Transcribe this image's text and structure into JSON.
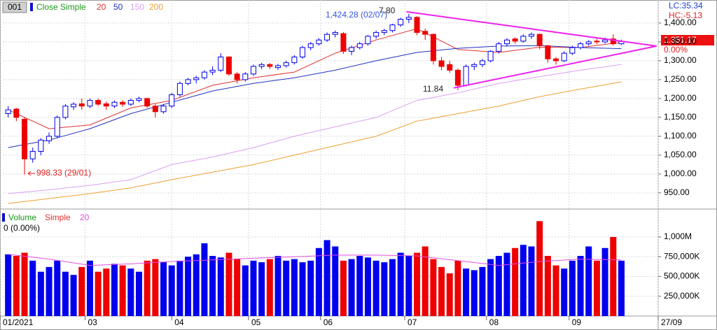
{
  "chart_data": [
    {
      "type": "candlestick",
      "symbol": "001",
      "legend_title": "Close Simple",
      "up_color": "#0000ee",
      "down_color": "#ee0000",
      "ohlc": [
        [
          1160,
          1180,
          1150,
          1170
        ],
        [
          1172,
          1175,
          1140,
          1150
        ],
        [
          1145,
          1150,
          998.33,
          1040
        ],
        [
          1040,
          1070,
          1030,
          1060
        ],
        [
          1060,
          1095,
          1050,
          1090
        ],
        [
          1088,
          1110,
          1080,
          1100
        ],
        [
          1100,
          1155,
          1095,
          1150
        ],
        [
          1150,
          1185,
          1145,
          1180
        ],
        [
          1178,
          1190,
          1170,
          1185
        ],
        [
          1186,
          1200,
          1170,
          1180
        ],
        [
          1180,
          1200,
          1175,
          1195
        ],
        [
          1195,
          1200,
          1180,
          1185
        ],
        [
          1186,
          1192,
          1170,
          1180
        ],
        [
          1180,
          1195,
          1175,
          1190
        ],
        [
          1190,
          1195,
          1178,
          1185
        ],
        [
          1185,
          1200,
          1180,
          1195
        ],
        [
          1195,
          1205,
          1190,
          1200
        ],
        [
          1200,
          1202,
          1175,
          1180
        ],
        [
          1180,
          1185,
          1150,
          1165
        ],
        [
          1165,
          1185,
          1160,
          1180
        ],
        [
          1180,
          1215,
          1175,
          1210
        ],
        [
          1210,
          1245,
          1205,
          1240
        ],
        [
          1240,
          1255,
          1235,
          1250
        ],
        [
          1250,
          1260,
          1240,
          1255
        ],
        [
          1255,
          1275,
          1250,
          1270
        ],
        [
          1270,
          1285,
          1262,
          1275
        ],
        [
          1275,
          1320,
          1270,
          1310
        ],
        [
          1310,
          1312,
          1260,
          1265
        ],
        [
          1265,
          1270,
          1240,
          1250
        ],
        [
          1250,
          1270,
          1245,
          1265
        ],
        [
          1265,
          1290,
          1260,
          1285
        ],
        [
          1285,
          1295,
          1278,
          1290
        ],
        [
          1290,
          1294,
          1278,
          1285
        ],
        [
          1282,
          1292,
          1276,
          1287
        ],
        [
          1287,
          1300,
          1282,
          1295
        ],
        [
          1295,
          1315,
          1290,
          1310
        ],
        [
          1310,
          1340,
          1305,
          1335
        ],
        [
          1335,
          1350,
          1328,
          1345
        ],
        [
          1345,
          1360,
          1340,
          1355
        ],
        [
          1355,
          1375,
          1350,
          1370
        ],
        [
          1370,
          1380,
          1362,
          1375
        ],
        [
          1372,
          1376,
          1318,
          1325
        ],
        [
          1325,
          1340,
          1315,
          1335
        ],
        [
          1335,
          1350,
          1330,
          1345
        ],
        [
          1345,
          1368,
          1340,
          1365
        ],
        [
          1365,
          1380,
          1358,
          1375
        ],
        [
          1375,
          1385,
          1368,
          1380
        ],
        [
          1380,
          1398,
          1375,
          1395
        ],
        [
          1395,
          1414,
          1390,
          1410
        ],
        [
          1410,
          1424.28,
          1400,
          1415
        ],
        [
          1415,
          1418,
          1368,
          1375
        ],
        [
          1378,
          1385,
          1355,
          1370
        ],
        [
          1370,
          1372,
          1290,
          1300
        ],
        [
          1300,
          1310,
          1275,
          1285
        ],
        [
          1290,
          1300,
          1268,
          1275
        ],
        [
          1275,
          1280,
          1221.84,
          1235
        ],
        [
          1235,
          1290,
          1232,
          1285
        ],
        [
          1285,
          1295,
          1275,
          1290
        ],
        [
          1290,
          1305,
          1283,
          1300
        ],
        [
          1300,
          1328,
          1296,
          1325
        ],
        [
          1325,
          1350,
          1320,
          1345
        ],
        [
          1345,
          1360,
          1338,
          1355
        ],
        [
          1358,
          1362,
          1345,
          1352
        ],
        [
          1352,
          1370,
          1348,
          1365
        ],
        [
          1365,
          1375,
          1358,
          1370
        ],
        [
          1370,
          1372,
          1330,
          1340
        ],
        [
          1340,
          1342,
          1295,
          1305
        ],
        [
          1305,
          1310,
          1290,
          1300
        ],
        [
          1300,
          1325,
          1296,
          1320
        ],
        [
          1320,
          1340,
          1315,
          1335
        ],
        [
          1335,
          1350,
          1330,
          1345
        ],
        [
          1345,
          1355,
          1340,
          1350
        ],
        [
          1352,
          1358,
          1344,
          1350
        ],
        [
          1350,
          1362,
          1346,
          1355
        ],
        [
          1358,
          1370,
          1340,
          1345
        ],
        [
          1345,
          1356,
          1342,
          1351.17
        ]
      ],
      "xlim": [
        -1,
        79.5
      ],
      "xticks": [
        {
          "value": -1,
          "label": "01/2021"
        },
        {
          "value": 9.4,
          "label": "03"
        },
        {
          "value": 20,
          "label": "04"
        },
        {
          "value": 29.4,
          "label": "05"
        },
        {
          "value": 38.2,
          "label": "06"
        },
        {
          "value": 48.5,
          "label": "07"
        },
        {
          "value": 58.5,
          "label": "08"
        },
        {
          "value": 68.6,
          "label": "09"
        },
        {
          "value": 79.5,
          "label": "27/09"
        }
      ],
      "ylim": [
        909,
        1461
      ],
      "yticks": [
        {
          "value": 950,
          "label": "950.00"
        },
        {
          "value": 1000,
          "label": "1,000.00"
        },
        {
          "value": 1050,
          "label": "1,050.00"
        },
        {
          "value": 1100,
          "label": "1,100.00"
        },
        {
          "value": 1150,
          "label": "1,150.00"
        },
        {
          "value": 1200,
          "label": "1,200.00"
        },
        {
          "value": 1250,
          "label": "1,250.00"
        },
        {
          "value": 1300,
          "label": "1,300.00"
        },
        {
          "value": 1350,
          "label": "1,350.00"
        },
        {
          "value": 1400,
          "label": "1,400.00"
        }
      ],
      "grid": true,
      "series": [
        {
          "name": "20",
          "color": "#e03030",
          "x": [
            0,
            5,
            10,
            15,
            20,
            25,
            30,
            35,
            40,
            45,
            50,
            55,
            60,
            65,
            70,
            75
          ],
          "values": [
            1170,
            1120,
            1130,
            1175,
            1195,
            1235,
            1255,
            1270,
            1320,
            1355,
            1385,
            1330,
            1322,
            1336,
            1335,
            1349
          ]
        },
        {
          "name": "50",
          "color": "#2030c0",
          "x": [
            0,
            5,
            10,
            15,
            20,
            25,
            30,
            35,
            40,
            45,
            50,
            55,
            60,
            65,
            70,
            75
          ],
          "values": [
            1070,
            1090,
            1120,
            1160,
            1190,
            1220,
            1240,
            1255,
            1275,
            1300,
            1322,
            1333,
            1339,
            1340,
            1335,
            1332
          ]
        },
        {
          "name": "150",
          "color": "#d9a0f0",
          "x": [
            0,
            5,
            10,
            15,
            20,
            25,
            30,
            35,
            40,
            45,
            50,
            55,
            60,
            65,
            70,
            75
          ],
          "values": [
            948,
            958,
            970,
            985,
            1025,
            1045,
            1070,
            1100,
            1125,
            1150,
            1195,
            1215,
            1240,
            1258,
            1275,
            1290
          ]
        },
        {
          "name": "200",
          "color": "#f0a030",
          "x": [
            0,
            5,
            10,
            15,
            20,
            25,
            30,
            35,
            40,
            45,
            50,
            55,
            60,
            65,
            70,
            75
          ],
          "values": [
            922,
            935,
            948,
            963,
            985,
            1005,
            1025,
            1050,
            1075,
            1100,
            1140,
            1160,
            1180,
            1205,
            1225,
            1244
          ]
        }
      ],
      "trendlines": [
        {
          "color": "#ee22ee",
          "x": [
            48.7,
            79.3
          ],
          "y": [
            1430,
            1339
          ]
        },
        {
          "color": "#ee22ee",
          "x": [
            54.5,
            79.3
          ],
          "y": [
            1228,
            1339
          ]
        }
      ],
      "annotations": [
        "1,424.28 (02/07)",
        "7.80",
        "11.84",
        "998.33 (29/01)"
      ],
      "status": {
        "lc": "LC:35.34",
        "hc": "HC:-5.13",
        "last": "1,351.17",
        "change": "0.00%"
      }
    },
    {
      "type": "bar",
      "legend_title": "Volume",
      "ma_type": "Simple",
      "status": "0 (0.00%)",
      "values": [
        780,
        760,
        800,
        700,
        560,
        620,
        700,
        560,
        520,
        620,
        700,
        560,
        600,
        660,
        640,
        600,
        560,
        700,
        720,
        680,
        640,
        700,
        750,
        780,
        920,
        760,
        740,
        800,
        720,
        640,
        700,
        680,
        720,
        760,
        700,
        720,
        680,
        700,
        860,
        960,
        880,
        700,
        720,
        760,
        740,
        700,
        680,
        720,
        800,
        760,
        800,
        880,
        720,
        620,
        540,
        700,
        600,
        580,
        620,
        720,
        760,
        800,
        860,
        900,
        880,
        1200,
        760,
        640,
        600,
        700,
        760,
        880,
        700,
        860,
        1000,
        700
      ],
      "ylim": [
        0,
        1344
      ],
      "yticks": [
        {
          "value": 250,
          "label": "250,000K"
        },
        {
          "value": 500,
          "label": "500,000K"
        },
        {
          "value": 750,
          "label": "750,000K"
        },
        {
          "value": 1000,
          "label": "1,000M"
        }
      ],
      "series": [
        {
          "name": "20",
          "color": "#e050e0",
          "x": [
            0,
            5,
            10,
            15,
            20,
            25,
            30,
            35,
            40,
            45,
            50,
            55,
            60,
            65,
            70,
            75
          ],
          "values": [
            780,
            720,
            640,
            660,
            690,
            710,
            730,
            750,
            770,
            770,
            760,
            700,
            640,
            690,
            720,
            710
          ]
        }
      ]
    }
  ]
}
